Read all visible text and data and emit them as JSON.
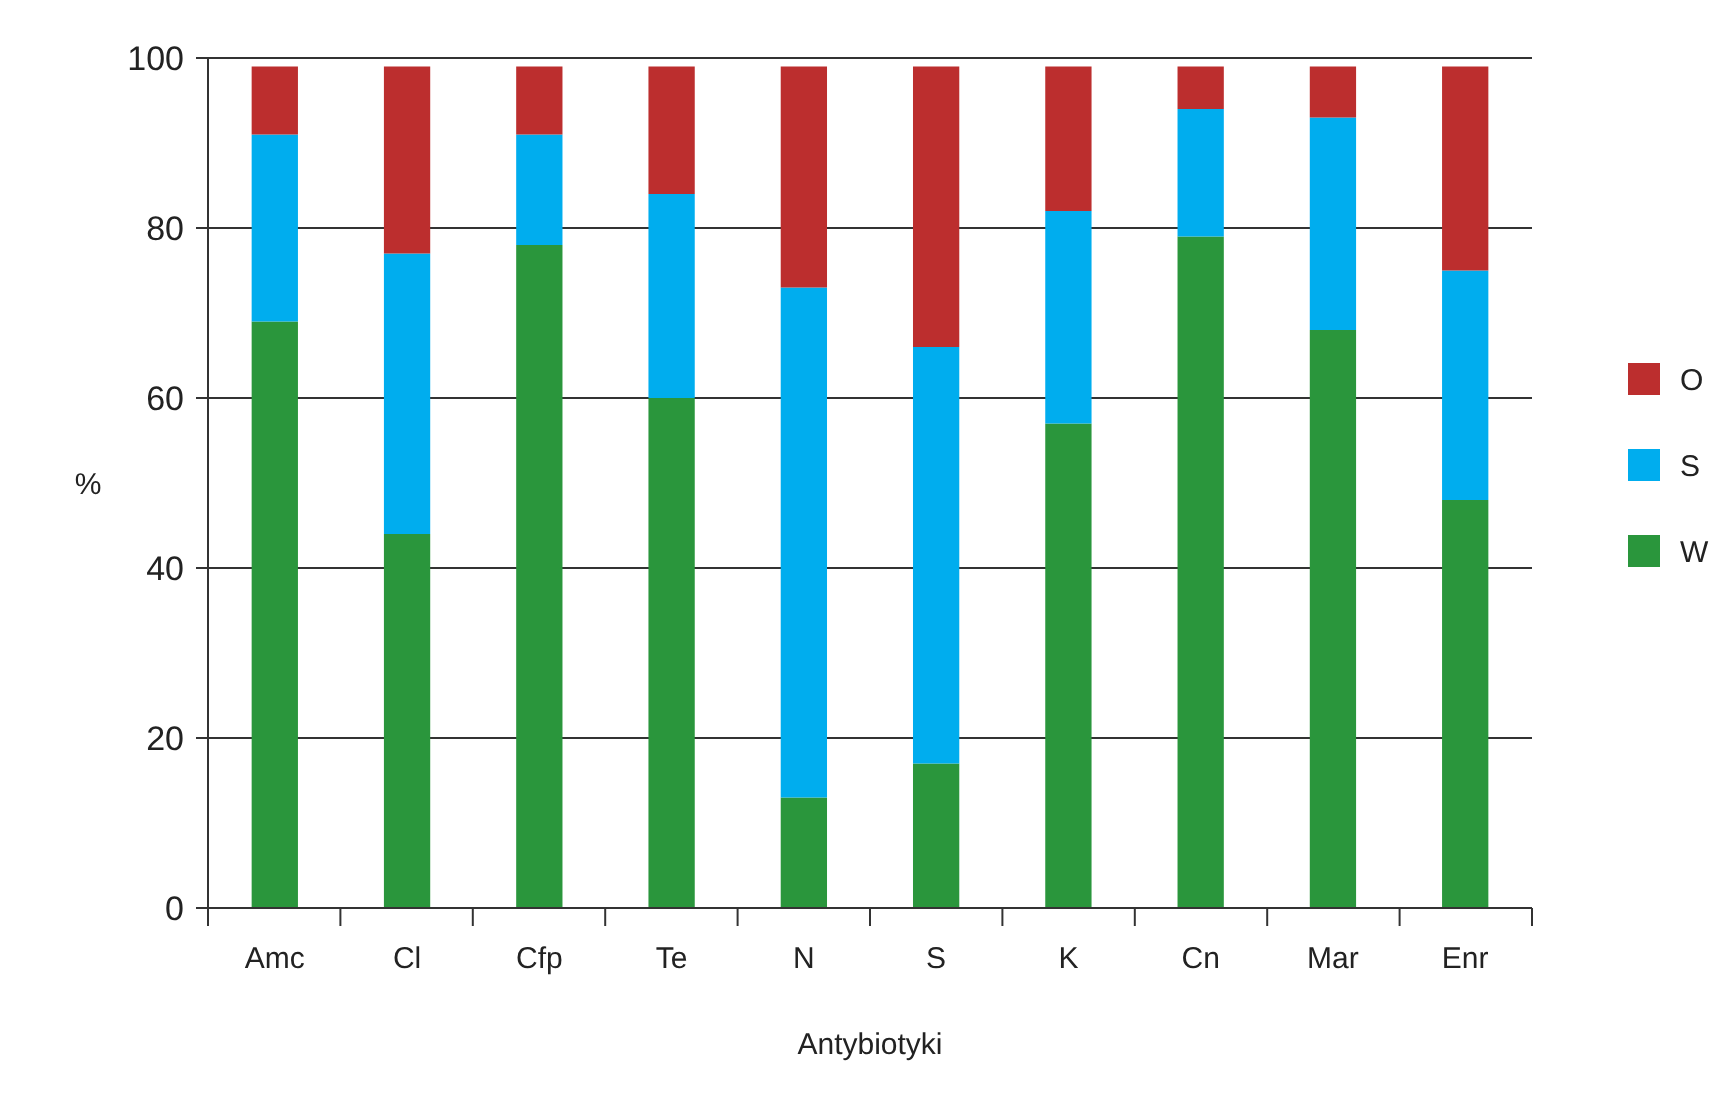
{
  "chart_data": {
    "type": "bar",
    "stacked": true,
    "xlabel": "Antybiotyki",
    "ylabel": "%",
    "categories": [
      "Amc",
      "Cl",
      "Cfp",
      "Te",
      "N",
      "S",
      "K",
      "Cn",
      "Mar",
      "Enr"
    ],
    "series": [
      {
        "name": "W",
        "color": "#2a963c",
        "values": [
          69,
          44,
          78,
          60,
          13,
          17,
          57,
          79,
          68,
          48
        ]
      },
      {
        "name": "S",
        "color": "#00adee",
        "values": [
          22,
          33,
          13,
          24,
          60,
          49,
          25,
          15,
          25,
          27
        ]
      },
      {
        "name": "O",
        "color": "#bc2e2e",
        "values": [
          8,
          22,
          8,
          15,
          26,
          33,
          17,
          5,
          6,
          24
        ]
      }
    ],
    "ylim": [
      0,
      100
    ],
    "yticks": [
      0,
      20,
      40,
      60,
      80,
      100
    ],
    "grid": "y",
    "legend": "right"
  }
}
